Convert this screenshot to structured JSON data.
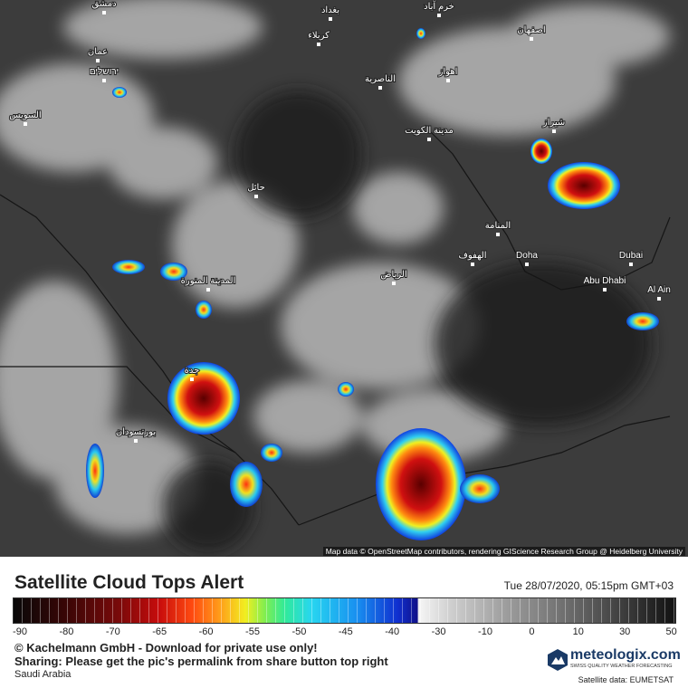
{
  "map": {
    "labels": [
      "دمشق",
      "بغداد",
      "كربلاء",
      "عمان",
      "ירושלים",
      "السويس",
      "الناصرية",
      "اهواز",
      "اصفهان",
      "شيراز",
      "مدينة الكويت",
      "حائل",
      "المنامة",
      "الهفوف",
      "Doha",
      "الرياض",
      "المدينة المنورة",
      "Abu Dhabi",
      "Dubai",
      "Al Ain",
      "جدة",
      "بورتسودان",
      "خرم آباد"
    ],
    "attribution": "Map data © OpenStreetMap contributors, rendering GIScience Research Group @ Heidelberg University"
  },
  "legend": {
    "title": "Satellite Cloud Tops Alert",
    "timestamp": "Tue 28/07/2020, 05:15pm GMT+03",
    "ticks": [
      -90,
      -80,
      -70,
      -65,
      -60,
      -55,
      -50,
      -45,
      -40,
      -30,
      -10,
      0,
      10,
      30,
      50
    ]
  },
  "footer": {
    "copyright": "© Kachelmann GmbH - Download for private use only!",
    "sharing": "Sharing: Please get the pic's permalink from share button top right",
    "region": "Saudi Arabia",
    "logo": "meteologix.com",
    "tagline": "SWISS QUALITY WEATHER FORECASTING",
    "source": "Satellite data: EUMETSAT"
  }
}
